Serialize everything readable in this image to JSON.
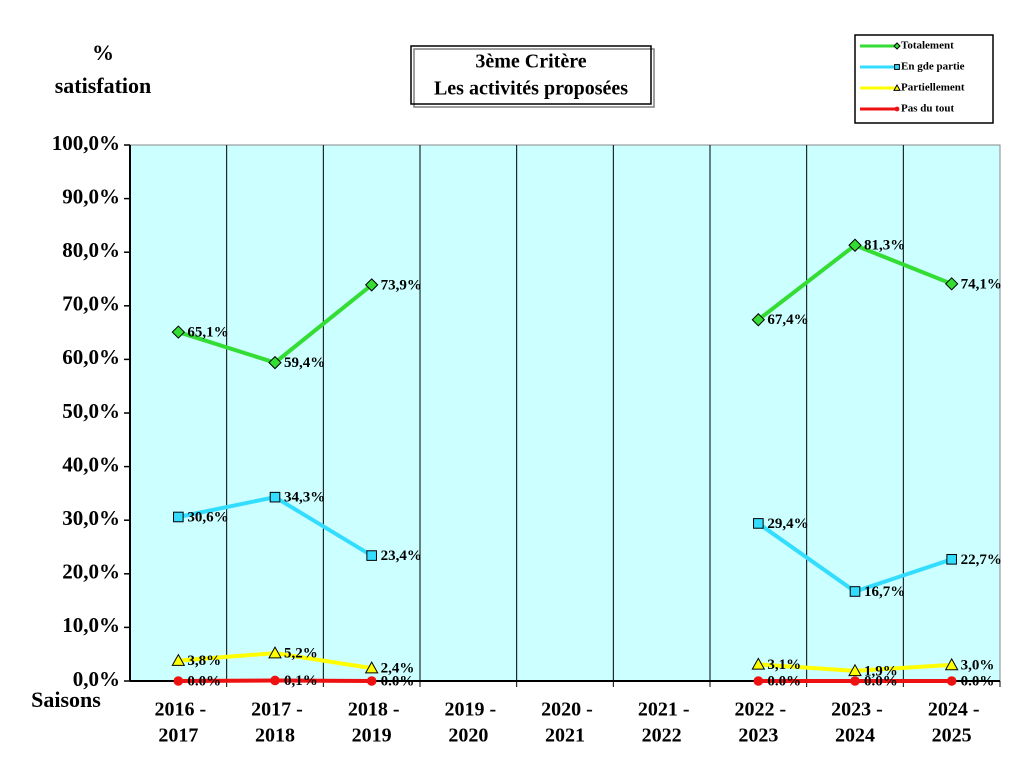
{
  "chart_data": {
    "type": "line",
    "title": "3ème  Critère",
    "subtitle": "Les activités proposées",
    "y_label": [
      "%",
      "satisfation"
    ],
    "x_label": "Saisons",
    "categories": [
      [
        "2016 -",
        "2017"
      ],
      [
        "2017 -",
        "2018"
      ],
      [
        "2018 -",
        "2019"
      ],
      [
        "2019 -",
        "2020"
      ],
      [
        "2020 -",
        "2021"
      ],
      [
        "2021 -",
        "2022"
      ],
      [
        "2022 -",
        "2023"
      ],
      [
        "2023 -",
        "2024"
      ],
      [
        "2024 -",
        "2025"
      ]
    ],
    "ylim": [
      0,
      100
    ],
    "yticks": [
      {
        "value": 0,
        "label": "0,0%"
      },
      {
        "value": 10,
        "label": "10,0%"
      },
      {
        "value": 20,
        "label": "20,0%"
      },
      {
        "value": 30,
        "label": "30,0%"
      },
      {
        "value": 40,
        "label": "40,0%"
      },
      {
        "value": 50,
        "label": "50,0%"
      },
      {
        "value": 60,
        "label": "60,0%"
      },
      {
        "value": 70,
        "label": "70,0%"
      },
      {
        "value": 80,
        "label": "80,0%"
      },
      {
        "value": 90,
        "label": "90,0%"
      },
      {
        "value": 100,
        "label": "100,0%"
      }
    ],
    "grid": true,
    "legend": "top-right",
    "background": "#ccffff",
    "series": [
      {
        "name": "Totalement",
        "color": "#33dd33",
        "marker": "diamond",
        "values": [
          65.1,
          59.4,
          73.9,
          null,
          null,
          null,
          67.4,
          81.3,
          74.1
        ],
        "value_labels": [
          "65,1%",
          "59,4%",
          "73,9%",
          null,
          null,
          null,
          "67,4%",
          "81,3%",
          "74,1%"
        ]
      },
      {
        "name": "En gde partie",
        "color": "#33ddff",
        "marker": "square",
        "values": [
          30.6,
          34.3,
          23.4,
          null,
          null,
          null,
          29.4,
          16.7,
          22.7
        ],
        "value_labels": [
          "30,6%",
          "34,3%",
          "23,4%",
          null,
          null,
          null,
          "29,4%",
          "16,7%",
          "22,7%"
        ]
      },
      {
        "name": "Partiellement",
        "color": "#ffff00",
        "marker": "triangle",
        "values": [
          3.8,
          5.2,
          2.4,
          null,
          null,
          null,
          3.1,
          1.9,
          3.0
        ],
        "value_labels": [
          "3,8%",
          "5,2%",
          "2,4%",
          null,
          null,
          null,
          "3,1%",
          "1,9%",
          "3,0%"
        ]
      },
      {
        "name": "Pas du tout",
        "color": "#ee1111",
        "marker": "circle",
        "values": [
          0.0,
          0.1,
          0.0,
          null,
          null,
          null,
          0.0,
          0.0,
          0.0
        ],
        "value_labels": [
          "0.0%",
          "0,1%",
          "0.0%",
          null,
          null,
          null,
          "0.0%",
          "0.0%",
          "0.0%"
        ]
      }
    ]
  }
}
